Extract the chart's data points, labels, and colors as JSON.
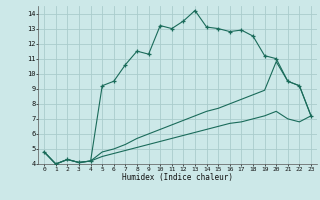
{
  "xlabel": "Humidex (Indice chaleur)",
  "bg_color": "#cce8e8",
  "grid_color": "#aacccc",
  "line_color": "#1a6b5a",
  "xlim": [
    -0.5,
    23.5
  ],
  "ylim": [
    4,
    14.5
  ],
  "xticks": [
    0,
    1,
    2,
    3,
    4,
    5,
    6,
    7,
    8,
    9,
    10,
    11,
    12,
    13,
    14,
    15,
    16,
    17,
    18,
    19,
    20,
    21,
    22,
    23
  ],
  "yticks": [
    4,
    5,
    6,
    7,
    8,
    9,
    10,
    11,
    12,
    13,
    14
  ],
  "main_x": [
    0,
    1,
    2,
    3,
    4,
    5,
    6,
    7,
    8,
    9,
    10,
    11,
    12,
    13,
    14,
    15,
    16,
    17,
    18,
    19,
    20,
    21,
    22,
    23
  ],
  "main_y": [
    4.8,
    4.0,
    4.3,
    4.1,
    4.2,
    9.2,
    9.5,
    10.6,
    11.5,
    11.3,
    13.2,
    13.0,
    13.5,
    14.2,
    13.1,
    13.0,
    12.8,
    12.9,
    12.5,
    11.2,
    11.0,
    9.5,
    9.2,
    7.2
  ],
  "line2_x": [
    0,
    1,
    2,
    3,
    4,
    5,
    6,
    7,
    8,
    9,
    10,
    11,
    12,
    13,
    14,
    15,
    16,
    17,
    18,
    19,
    20,
    21,
    22,
    23
  ],
  "line2_y": [
    4.8,
    4.0,
    4.3,
    4.1,
    4.2,
    4.8,
    5.0,
    5.3,
    5.7,
    6.0,
    6.3,
    6.6,
    6.9,
    7.2,
    7.5,
    7.7,
    8.0,
    8.3,
    8.6,
    8.9,
    10.8,
    9.5,
    9.2,
    7.2
  ],
  "line3_x": [
    0,
    1,
    2,
    3,
    4,
    5,
    6,
    7,
    8,
    9,
    10,
    11,
    12,
    13,
    14,
    15,
    16,
    17,
    18,
    19,
    20,
    21,
    22,
    23
  ],
  "line3_y": [
    4.8,
    4.0,
    4.3,
    4.1,
    4.2,
    4.5,
    4.7,
    4.9,
    5.1,
    5.3,
    5.5,
    5.7,
    5.9,
    6.1,
    6.3,
    6.5,
    6.7,
    6.8,
    7.0,
    7.2,
    7.5,
    7.0,
    6.8,
    7.2
  ]
}
